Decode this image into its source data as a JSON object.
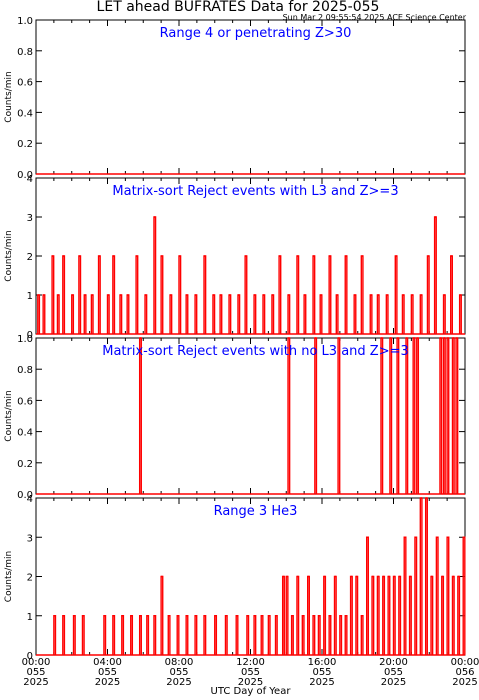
{
  "header": {
    "title": "LET ahead BUFRATES Data for 2025-055",
    "timestamp": "Sun Mar  2 09:55:54 2025 ACE Science Center"
  },
  "colors": {
    "data": "#ff0000",
    "label": "#0000ff",
    "axis": "#000000"
  },
  "chart_data": [
    {
      "type": "line",
      "title": "Range 4 or   penetrating Z>30",
      "ylabel": "Counts/min",
      "ylim": [
        0,
        1.0
      ],
      "yticks": [
        "0.0",
        "0.2",
        "0.4",
        "0.6",
        "0.8",
        "1.0"
      ],
      "series": [
        {
          "x": [
            0,
            24
          ],
          "values": [
            0,
            0
          ]
        }
      ]
    },
    {
      "type": "line",
      "title": "Matrix-sort Reject events with L3 and Z>=3",
      "ylabel": "Counts/min",
      "ylim": [
        0,
        4
      ],
      "yticks": [
        "0",
        "1",
        "2",
        "3",
        "4"
      ],
      "series": [
        {
          "x": [
            0.1,
            0.4,
            0.9,
            1.2,
            1.5,
            2.0,
            2.4,
            2.7,
            3.1,
            3.5,
            4.0,
            4.3,
            4.7,
            5.1,
            5.6,
            6.1,
            6.6,
            7.0,
            7.5,
            8.0,
            8.4,
            8.9,
            9.4,
            9.9,
            10.3,
            10.8,
            11.3,
            11.7,
            12.2,
            12.7,
            13.2,
            13.6,
            14.1,
            14.6,
            15.0,
            15.5,
            15.9,
            16.4,
            16.8,
            17.3,
            17.8,
            18.2,
            18.7,
            19.1,
            19.6,
            20.1,
            20.5,
            21.0,
            21.5,
            21.9,
            22.3,
            22.8,
            23.2,
            23.7
          ],
          "values": [
            1,
            1,
            2,
            1,
            2,
            1,
            2,
            1,
            1,
            2,
            1,
            2,
            1,
            1,
            2,
            1,
            3,
            2,
            1,
            2,
            1,
            1,
            2,
            1,
            1,
            1,
            1,
            2,
            1,
            1,
            1,
            2,
            1,
            2,
            1,
            2,
            1,
            2,
            1,
            2,
            1,
            2,
            1,
            1,
            1,
            2,
            1,
            1,
            1,
            2,
            3,
            1,
            2,
            1
          ]
        }
      ]
    },
    {
      "type": "line",
      "title": "Matrix-sort Reject events with no L3 and Z>=3",
      "ylabel": "Counts/min",
      "ylim": [
        0,
        1.0
      ],
      "yticks": [
        "0.0",
        "0.2",
        "0.4",
        "0.6",
        "0.8",
        "1.0"
      ],
      "series": [
        {
          "x": [
            5.8,
            14.1,
            15.6,
            16.9,
            19.3,
            19.8,
            20.2,
            20.7,
            21.1,
            21.3,
            22.6,
            22.8,
            23.0,
            23.3,
            23.5
          ],
          "values": [
            1,
            1,
            1,
            1,
            1,
            1,
            1,
            1,
            1,
            1,
            1,
            1,
            1,
            1,
            1
          ]
        }
      ]
    },
    {
      "type": "line",
      "title": "Range 3 He3",
      "ylabel": "Counts/min",
      "xlabel": "UTC Day of Year",
      "ylim": [
        0,
        4
      ],
      "yticks": [
        "0",
        "1",
        "2",
        "3",
        "4"
      ],
      "xticks": [
        "00:00\n055\n2025",
        "04:00\n055\n2025",
        "08:00\n055\n2025",
        "12:00\n055\n2025",
        "16:00\n055\n2025",
        "20:00\n055\n2025",
        "00:00\n056\n2025"
      ],
      "xlim": [
        0,
        24
      ],
      "series": [
        {
          "x": [
            1.0,
            1.5,
            2.1,
            2.6,
            3.8,
            4.3,
            4.8,
            5.3,
            5.8,
            6.2,
            6.6,
            7.0,
            7.4,
            7.9,
            8.4,
            8.9,
            9.4,
            10.0,
            10.6,
            11.2,
            11.8,
            12.2,
            12.6,
            13.0,
            13.4,
            13.8,
            14.0,
            14.3,
            14.6,
            14.9,
            15.2,
            15.5,
            15.8,
            16.1,
            16.4,
            16.7,
            17.0,
            17.3,
            17.6,
            17.9,
            18.2,
            18.5,
            18.8,
            19.1,
            19.4,
            19.7,
            20.0,
            20.3,
            20.6,
            20.9,
            21.2,
            21.5,
            21.8,
            22.1,
            22.4,
            22.7,
            23.0,
            23.3,
            23.6,
            23.9
          ],
          "values": [
            1,
            1,
            1,
            1,
            1,
            1,
            1,
            1,
            1,
            1,
            1,
            2,
            1,
            1,
            1,
            1,
            1,
            1,
            1,
            1,
            1,
            1,
            1,
            1,
            1,
            2,
            2,
            1,
            2,
            1,
            2,
            1,
            1,
            2,
            1,
            2,
            1,
            1,
            2,
            2,
            1,
            3,
            2,
            2,
            2,
            2,
            2,
            2,
            3,
            2,
            3,
            4,
            4,
            2,
            3,
            2,
            3,
            2,
            2,
            3
          ]
        }
      ]
    }
  ]
}
